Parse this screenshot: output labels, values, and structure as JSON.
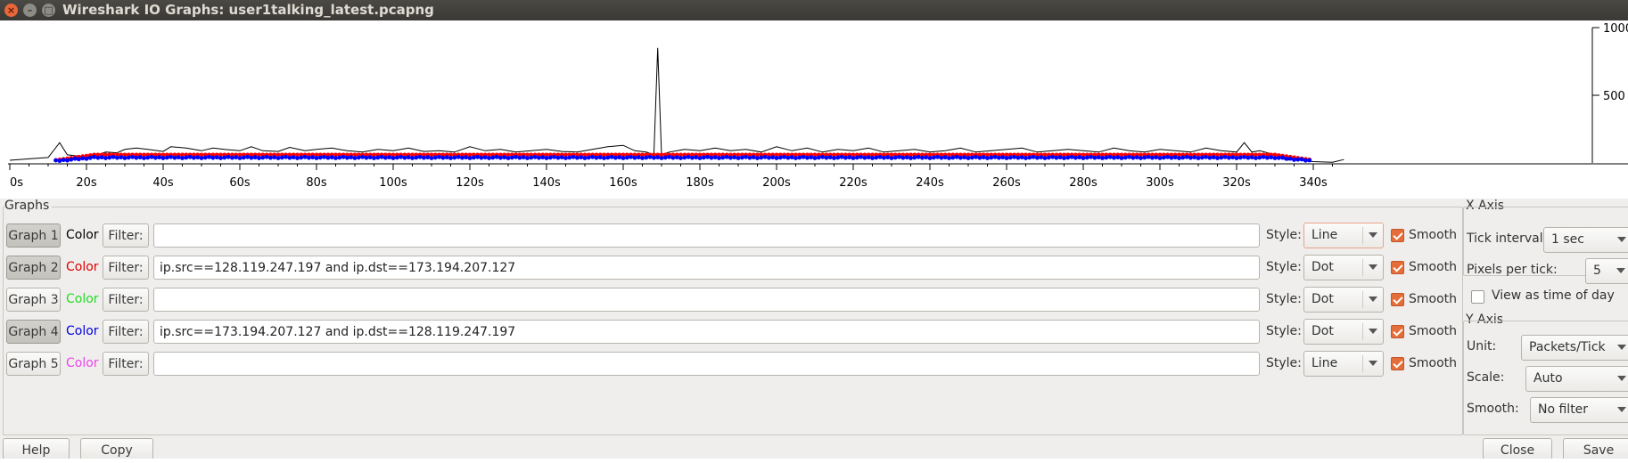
{
  "window": {
    "title": "Wireshark IO Graphs: user1talking_latest.pcapng"
  },
  "chart_data": {
    "type": "line",
    "x_ticks": [
      "0s",
      "20s",
      "40s",
      "60s",
      "80s",
      "100s",
      "120s",
      "140s",
      "160s",
      "180s",
      "200s",
      "220s",
      "240s",
      "260s",
      "280s",
      "300s",
      "320s",
      "340s"
    ],
    "y_ticks": [
      "1000",
      "500"
    ],
    "xlim": [
      0,
      350
    ],
    "ylim": [
      0,
      1000
    ],
    "series": [
      {
        "color": "#000000",
        "style": "line",
        "points": [
          [
            0,
            20
          ],
          [
            5,
            30
          ],
          [
            10,
            40
          ],
          [
            13,
            150
          ],
          [
            15,
            60
          ],
          [
            20,
            45
          ],
          [
            23,
            60
          ],
          [
            25,
            80
          ],
          [
            28,
            75
          ],
          [
            30,
            100
          ],
          [
            33,
            110
          ],
          [
            36,
            100
          ],
          [
            40,
            85
          ],
          [
            42,
            120
          ],
          [
            46,
            110
          ],
          [
            50,
            90
          ],
          [
            53,
            110
          ],
          [
            56,
            100
          ],
          [
            60,
            90
          ],
          [
            63,
            120
          ],
          [
            66,
            90
          ],
          [
            70,
            85
          ],
          [
            73,
            115
          ],
          [
            77,
            90
          ],
          [
            80,
            100
          ],
          [
            84,
            110
          ],
          [
            88,
            90
          ],
          [
            92,
            80
          ],
          [
            96,
            100
          ],
          [
            100,
            90
          ],
          [
            104,
            110
          ],
          [
            108,
            85
          ],
          [
            112,
            90
          ],
          [
            116,
            80
          ],
          [
            120,
            120
          ],
          [
            124,
            90
          ],
          [
            128,
            100
          ],
          [
            132,
            80
          ],
          [
            136,
            90
          ],
          [
            140,
            100
          ],
          [
            144,
            85
          ],
          [
            148,
            80
          ],
          [
            152,
            100
          ],
          [
            156,
            120
          ],
          [
            160,
            130
          ],
          [
            163,
            90
          ],
          [
            166,
            80
          ],
          [
            168,
            60
          ],
          [
            169,
            850
          ],
          [
            170,
            60
          ],
          [
            172,
            80
          ],
          [
            176,
            100
          ],
          [
            180,
            90
          ],
          [
            184,
            110
          ],
          [
            188,
            90
          ],
          [
            192,
            100
          ],
          [
            196,
            80
          ],
          [
            200,
            120
          ],
          [
            204,
            90
          ],
          [
            208,
            110
          ],
          [
            212,
            80
          ],
          [
            216,
            100
          ],
          [
            220,
            90
          ],
          [
            224,
            110
          ],
          [
            228,
            80
          ],
          [
            232,
            90
          ],
          [
            236,
            100
          ],
          [
            240,
            80
          ],
          [
            244,
            90
          ],
          [
            248,
            110
          ],
          [
            252,
            80
          ],
          [
            256,
            90
          ],
          [
            260,
            100
          ],
          [
            264,
            110
          ],
          [
            268,
            80
          ],
          [
            272,
            90
          ],
          [
            276,
            100
          ],
          [
            280,
            90
          ],
          [
            284,
            80
          ],
          [
            288,
            110
          ],
          [
            292,
            90
          ],
          [
            296,
            80
          ],
          [
            300,
            100
          ],
          [
            304,
            90
          ],
          [
            308,
            80
          ],
          [
            312,
            110
          ],
          [
            316,
            90
          ],
          [
            320,
            80
          ],
          [
            322,
            150
          ],
          [
            324,
            80
          ],
          [
            326,
            90
          ],
          [
            330,
            60
          ],
          [
            333,
            20
          ],
          [
            336,
            30
          ],
          [
            338,
            15
          ],
          [
            340,
            10
          ],
          [
            345,
            5
          ],
          [
            348,
            25
          ]
        ]
      },
      {
        "color": "#ff0000",
        "style": "dot",
        "points": [
          [
            12,
            20
          ],
          [
            22,
            60
          ],
          [
            330,
            60
          ],
          [
            340,
            20
          ]
        ]
      },
      {
        "color": "#0000ff",
        "style": "dot",
        "points": [
          [
            12,
            15
          ],
          [
            22,
            40
          ],
          [
            330,
            40
          ],
          [
            340,
            15
          ]
        ]
      }
    ]
  },
  "graphs_group": {
    "label": "Graphs"
  },
  "graphs": [
    {
      "button": "Graph 1",
      "color_label": "Color",
      "color": "#000000",
      "filter_label": "Filter:",
      "filter": "",
      "style_label": "Style:",
      "style": "Line",
      "smooth_label": "Smooth",
      "pressed": true
    },
    {
      "button": "Graph 2",
      "color_label": "Color",
      "color": "#dd0000",
      "filter_label": "Filter:",
      "filter": "ip.src==128.119.247.197 and ip.dst==173.194.207.127",
      "style_label": "Style:",
      "style": "Dot",
      "smooth_label": "Smooth",
      "pressed": true
    },
    {
      "button": "Graph 3",
      "color_label": "Color",
      "color": "#22dd22",
      "filter_label": "Filter:",
      "filter": "",
      "style_label": "Style:",
      "style": "Dot",
      "smooth_label": "Smooth",
      "pressed": false
    },
    {
      "button": "Graph 4",
      "color_label": "Color",
      "color": "#0000dd",
      "filter_label": "Filter:",
      "filter": "ip.src==173.194.207.127 and ip.dst==128.119.247.197",
      "style_label": "Style:",
      "style": "Dot",
      "smooth_label": "Smooth",
      "pressed": true
    },
    {
      "button": "Graph 5",
      "color_label": "Color",
      "color": "#ee44ee",
      "filter_label": "Filter:",
      "filter": "",
      "style_label": "Style:",
      "style": "Line",
      "smooth_label": "Smooth",
      "pressed": false
    }
  ],
  "x_axis": {
    "label": "X Axis",
    "tick_interval_label": "Tick interval:",
    "tick_interval": "1 sec",
    "pixels_per_tick_label": "Pixels per tick:",
    "pixels_per_tick": "5",
    "time_of_day_label": "View as time of day"
  },
  "y_axis": {
    "label": "Y Axis",
    "unit_label": "Unit:",
    "unit": "Packets/Tick",
    "scale_label": "Scale:",
    "scale": "Auto",
    "smooth_label": "Smooth:",
    "smooth": "No filter"
  },
  "buttons": {
    "help": "Help",
    "copy": "Copy",
    "close": "Close",
    "save": "Save"
  }
}
